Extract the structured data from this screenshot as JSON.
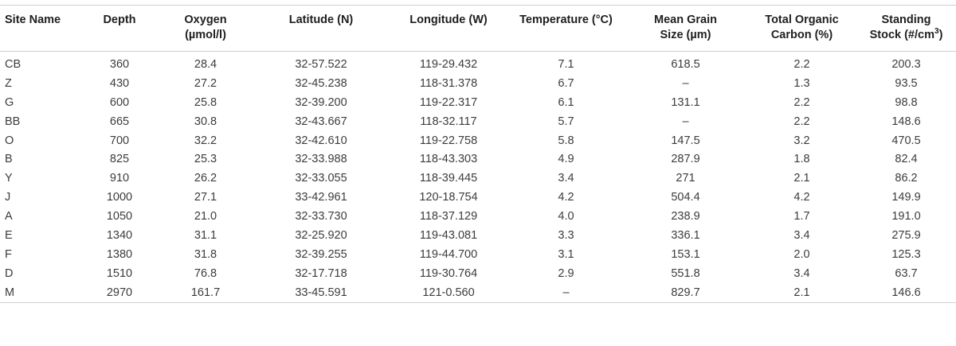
{
  "table": {
    "columns": [
      {
        "line1": "Site Name",
        "line2": ""
      },
      {
        "line1": "Depth",
        "line2": ""
      },
      {
        "line1": "Oxygen",
        "line2": "(µmol/l)"
      },
      {
        "line1": "Latitude (N)",
        "line2": ""
      },
      {
        "line1": "Longitude (W)",
        "line2": ""
      },
      {
        "line1": "Temperature (°C)",
        "line2": ""
      },
      {
        "line1": "Mean Grain",
        "line2": "Size (µm)"
      },
      {
        "line1": "Total Organic",
        "line2": "Carbon (%)"
      },
      {
        "line1": "Standing",
        "line2": "Stock (#/cm",
        "line2_sup": "3",
        "line2_end": ")"
      }
    ],
    "rows": [
      [
        "CB",
        "360",
        "28.4",
        "32-57.522",
        "119-29.432",
        "7.1",
        "618.5",
        "2.2",
        "200.3"
      ],
      [
        "Z",
        "430",
        "27.2",
        "32-45.238",
        "118-31.378",
        "6.7",
        "–",
        "1.3",
        "93.5"
      ],
      [
        "G",
        "600",
        "25.8",
        "32-39.200",
        "119-22.317",
        "6.1",
        "131.1",
        "2.2",
        "98.8"
      ],
      [
        "BB",
        "665",
        "30.8",
        "32-43.667",
        "118-32.117",
        "5.7",
        "–",
        "2.2",
        "148.6"
      ],
      [
        "O",
        "700",
        "32.2",
        "32-42.610",
        "119-22.758",
        "5.8",
        "147.5",
        "3.2",
        "470.5"
      ],
      [
        "B",
        "825",
        "25.3",
        "32-33.988",
        "118-43.303",
        "4.9",
        "287.9",
        "1.8",
        "82.4"
      ],
      [
        "Y",
        "910",
        "26.2",
        "32-33.055",
        "118-39.445",
        "3.4",
        "271",
        "2.1",
        "86.2"
      ],
      [
        "J",
        "1000",
        "27.1",
        "33-42.961",
        "120-18.754",
        "4.2",
        "504.4",
        "4.2",
        "149.9"
      ],
      [
        "A",
        "1050",
        "21.0",
        "32-33.730",
        "118-37.129",
        "4.0",
        "238.9",
        "1.7",
        "191.0"
      ],
      [
        "E",
        "1340",
        "31.1",
        "32-25.920",
        "119-43.081",
        "3.3",
        "336.1",
        "3.4",
        "275.9"
      ],
      [
        "F",
        "1380",
        "31.8",
        "32-39.255",
        "119-44.700",
        "3.1",
        "153.1",
        "2.0",
        "125.3"
      ],
      [
        "D",
        "1510",
        "76.8",
        "32-17.718",
        "119-30.764",
        "2.9",
        "551.8",
        "3.4",
        "63.7"
      ],
      [
        "M",
        "2970",
        "161.7",
        "33-45.591",
        "121-0.560",
        "–",
        "829.7",
        "2.1",
        "146.6"
      ]
    ]
  }
}
